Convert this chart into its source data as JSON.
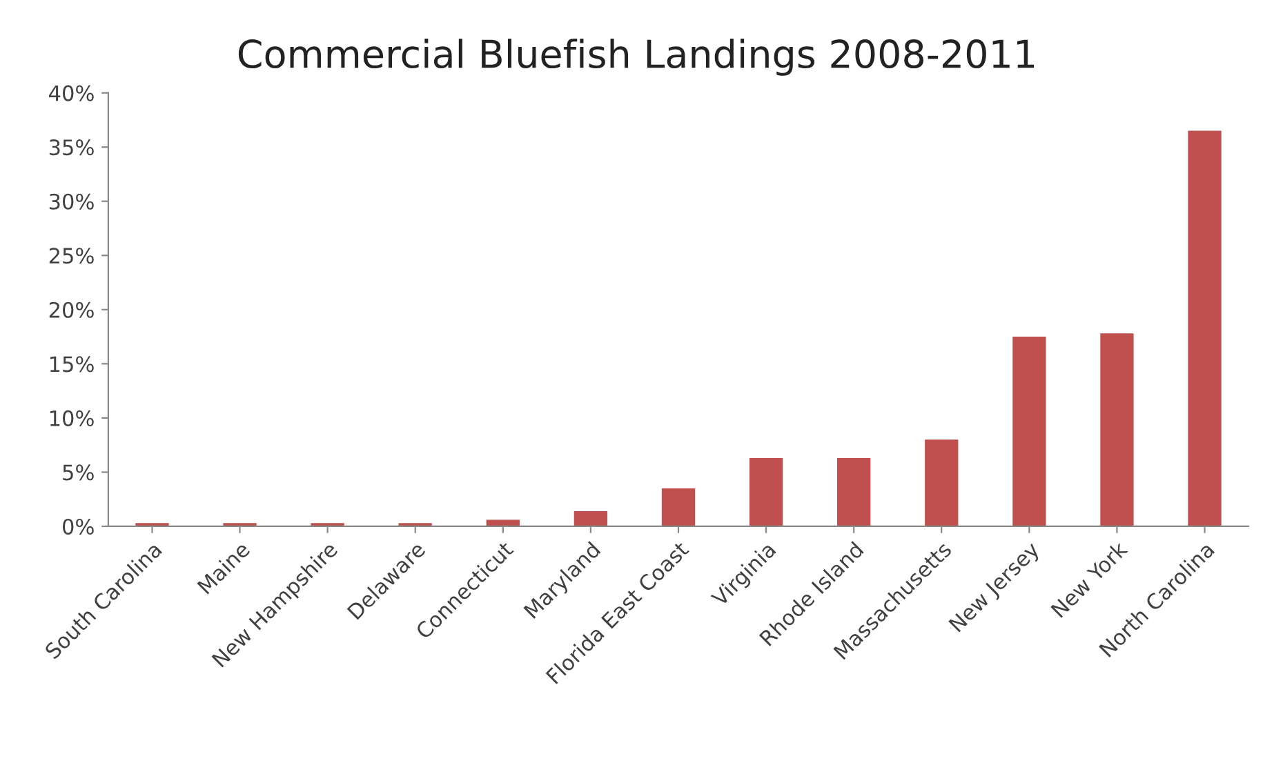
{
  "chart_data": {
    "type": "bar",
    "title": "Commercial Bluefish Landings 2008-2011",
    "categories": [
      "South Carolina",
      "Maine",
      "New Hampshire",
      "Delaware",
      "Connecticut",
      "Maryland",
      "Florida East Coast",
      "Virginia",
      "Rhode Island",
      "Massachusetts",
      "New Jersey",
      "New York",
      "North Carolina"
    ],
    "values": [
      0.3,
      0.3,
      0.3,
      0.3,
      0.6,
      1.4,
      3.5,
      6.3,
      6.3,
      8.0,
      17.5,
      17.8,
      36.5
    ],
    "color": "#c0504d",
    "ylim": [
      0,
      40
    ],
    "yticks": [
      {
        "value": 0,
        "label": "0%"
      },
      {
        "value": 5,
        "label": "5%"
      },
      {
        "value": 10,
        "label": "10%"
      },
      {
        "value": 15,
        "label": "15%"
      },
      {
        "value": 20,
        "label": "20%"
      },
      {
        "value": 25,
        "label": "25%"
      },
      {
        "value": 30,
        "label": "30%"
      },
      {
        "value": 35,
        "label": "35%"
      },
      {
        "value": 40,
        "label": "40%"
      }
    ]
  }
}
